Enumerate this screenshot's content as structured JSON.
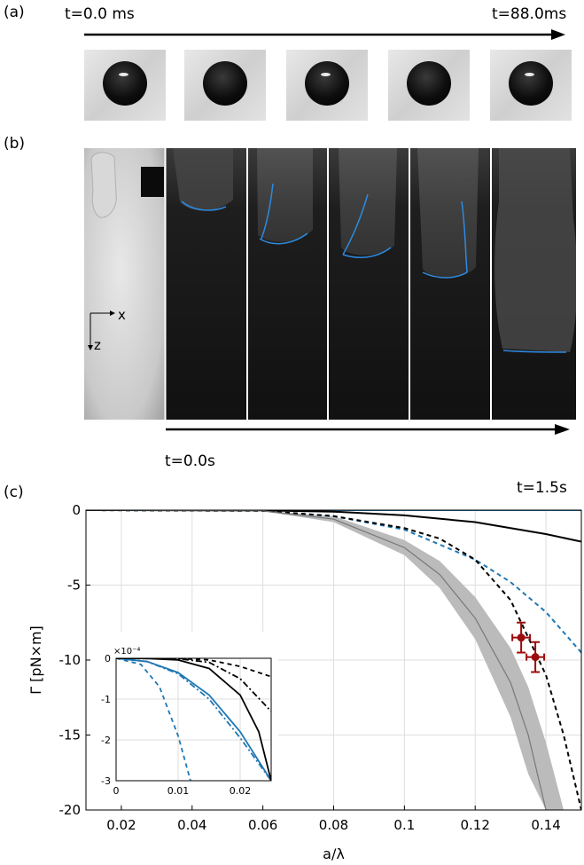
{
  "panel_a": {
    "label": "(a)",
    "t_start": "t=0.0 ms",
    "t_end": "t=88.0ms",
    "frames": [
      {
        "reflection": true
      },
      {
        "reflection": false
      },
      {
        "reflection": true
      },
      {
        "reflection": false
      },
      {
        "reflection": true
      }
    ]
  },
  "panel_b": {
    "label": "(b)",
    "axis_x": "x",
    "axis_z": "z",
    "t_start": "t=0.0s",
    "t_end": "t=1.5s"
  },
  "panel_c": {
    "label": "(c)"
  },
  "chart_data": [
    {
      "type": "line",
      "xlabel": "a/λ",
      "ylabel": "Γ [pN×m]",
      "xlim": [
        0.01,
        0.15
      ],
      "ylim": [
        -20,
        0
      ],
      "xticks": [
        "0.02",
        "0.04",
        "0.06",
        "0.08",
        "0.1",
        "0.12",
        "0.14"
      ],
      "yticks": [
        "0",
        "-5",
        "-10",
        "-15",
        "-20"
      ],
      "grid": true,
      "series": [
        {
          "style": "solid-blue",
          "color": "#1f77b4",
          "x": [
            0.01,
            0.15
          ],
          "y": [
            0,
            0
          ]
        },
        {
          "style": "solid-black",
          "color": "#000000",
          "x": [
            0.01,
            0.06,
            0.08,
            0.1,
            0.12,
            0.14,
            0.15
          ],
          "y": [
            0,
            -0.02,
            -0.1,
            -0.35,
            -0.8,
            -1.6,
            -2.1
          ]
        },
        {
          "style": "dashed-blue",
          "color": "#1f77b4",
          "x": [
            0.01,
            0.06,
            0.08,
            0.1,
            0.12,
            0.13,
            0.14,
            0.15
          ],
          "y": [
            0,
            -0.05,
            -0.4,
            -1.3,
            -3.3,
            -4.8,
            -6.8,
            -9.5
          ]
        },
        {
          "style": "dashed-black",
          "color": "#000000",
          "x": [
            0.01,
            0.06,
            0.08,
            0.1,
            0.11,
            0.12,
            0.13,
            0.14,
            0.145,
            0.15
          ],
          "y": [
            0,
            -0.05,
            -0.4,
            -1.2,
            -1.9,
            -3.3,
            -6.0,
            -11.0,
            -15.0,
            -20.0
          ]
        },
        {
          "style": "gray-center",
          "color": "#777777",
          "x": [
            0.01,
            0.06,
            0.08,
            0.1,
            0.11,
            0.12,
            0.13,
            0.135,
            0.14
          ],
          "y": [
            0,
            -0.05,
            -0.6,
            -2.5,
            -4.3,
            -7.2,
            -11.5,
            -15.0,
            -20.0
          ]
        }
      ],
      "band": {
        "color": "#bbbbbb",
        "x": [
          0.01,
          0.06,
          0.08,
          0.1,
          0.11,
          0.12,
          0.13,
          0.135,
          0.14,
          0.145
        ],
        "upper": [
          0,
          -0.03,
          -0.4,
          -2.0,
          -3.4,
          -5.8,
          -9.2,
          -11.8,
          -15.5,
          -20.0
        ],
        "lower": [
          0,
          -0.08,
          -0.8,
          -3.0,
          -5.2,
          -8.6,
          -13.8,
          -17.6,
          -20.0,
          -20.0
        ]
      },
      "points": [
        {
          "x": 0.133,
          "y": -8.5,
          "xerr": 0.0025,
          "yerr": 1.0,
          "color": "#9b0b0b"
        },
        {
          "x": 0.137,
          "y": -9.8,
          "xerr": 0.0025,
          "yerr": 1.0,
          "color": "#9b0b0b"
        }
      ]
    },
    {
      "type": "line",
      "inset": true,
      "xlim": [
        0,
        0.025
      ],
      "ylim": [
        -3,
        0
      ],
      "xticks": [
        "0",
        "0.01",
        "0.02"
      ],
      "yticks": [
        "0",
        "-1",
        "-2",
        "-3"
      ],
      "y_multiplier": "×10⁻⁴",
      "grid": true,
      "series": [
        {
          "style": "solid-blue",
          "color": "#1f77b4",
          "x": [
            0,
            0.005,
            0.01,
            0.015,
            0.02,
            0.025
          ],
          "y": [
            0,
            -0.08,
            -0.35,
            -0.9,
            -1.8,
            -3.0
          ]
        },
        {
          "style": "dashdot-blue",
          "color": "#1f77b4",
          "x": [
            0,
            0.005,
            0.01,
            0.015,
            0.02,
            0.025
          ],
          "y": [
            0,
            -0.08,
            -0.38,
            -1.0,
            -1.95,
            -3.0
          ]
        },
        {
          "style": "dashed-blue",
          "color": "#1f77b4",
          "x": [
            0,
            0.004,
            0.007,
            0.01,
            0.012
          ],
          "y": [
            0,
            -0.15,
            -0.7,
            -1.9,
            -3.0
          ]
        },
        {
          "style": "solid-black",
          "color": "#000000",
          "x": [
            0,
            0.005,
            0.01,
            0.015,
            0.02,
            0.023,
            0.025
          ],
          "y": [
            0,
            -0.005,
            -0.04,
            -0.25,
            -0.9,
            -1.8,
            -3.0
          ]
        },
        {
          "style": "dashdot-black",
          "color": "#000000",
          "x": [
            0,
            0.01,
            0.015,
            0.02,
            0.025
          ],
          "y": [
            0,
            -0.01,
            -0.1,
            -0.5,
            -1.3
          ]
        },
        {
          "style": "dashed-black",
          "color": "#000000",
          "x": [
            0,
            0.01,
            0.015,
            0.02,
            0.025
          ],
          "y": [
            0,
            -0.003,
            -0.04,
            -0.2,
            -0.45
          ]
        }
      ]
    }
  ]
}
